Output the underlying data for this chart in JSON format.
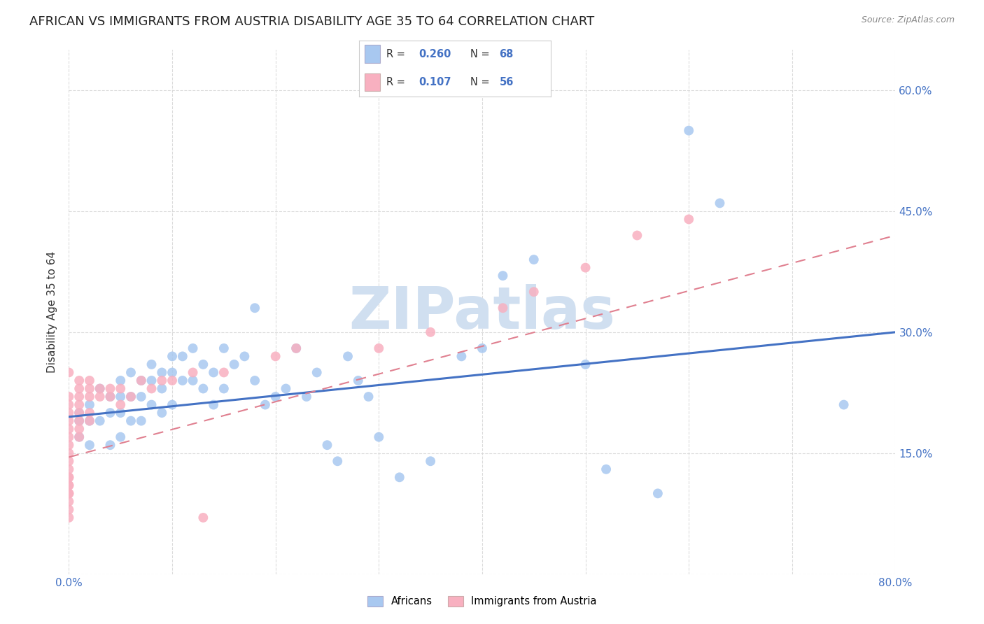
{
  "title": "AFRICAN VS IMMIGRANTS FROM AUSTRIA DISABILITY AGE 35 TO 64 CORRELATION CHART",
  "source": "Source: ZipAtlas.com",
  "ylabel_label": "Disability Age 35 to 64",
  "xlim": [
    0.0,
    0.8
  ],
  "ylim": [
    0.0,
    0.65
  ],
  "background_color": "#ffffff",
  "watermark": "ZIPatlas",
  "africans_color": "#a8c8f0",
  "austria_color": "#f8b0c0",
  "trendline_african_color": "#4472c4",
  "trendline_austria_color": "#e08090",
  "grid_color": "#d8d8d8",
  "title_fontsize": 13,
  "axis_label_fontsize": 11,
  "tick_fontsize": 11,
  "watermark_color": "#d0dff0",
  "watermark_fontsize": 60,
  "africans_x": [
    0.01,
    0.01,
    0.01,
    0.02,
    0.02,
    0.02,
    0.03,
    0.03,
    0.04,
    0.04,
    0.04,
    0.05,
    0.05,
    0.05,
    0.05,
    0.06,
    0.06,
    0.06,
    0.07,
    0.07,
    0.07,
    0.08,
    0.08,
    0.08,
    0.09,
    0.09,
    0.09,
    0.1,
    0.1,
    0.1,
    0.11,
    0.11,
    0.12,
    0.12,
    0.13,
    0.13,
    0.14,
    0.14,
    0.15,
    0.15,
    0.16,
    0.17,
    0.18,
    0.18,
    0.19,
    0.2,
    0.21,
    0.22,
    0.23,
    0.24,
    0.25,
    0.26,
    0.27,
    0.28,
    0.29,
    0.3,
    0.32,
    0.35,
    0.38,
    0.4,
    0.42,
    0.45,
    0.5,
    0.52,
    0.57,
    0.6,
    0.63,
    0.75
  ],
  "africans_y": [
    0.2,
    0.19,
    0.17,
    0.21,
    0.19,
    0.16,
    0.23,
    0.19,
    0.22,
    0.2,
    0.16,
    0.24,
    0.22,
    0.2,
    0.17,
    0.25,
    0.22,
    0.19,
    0.24,
    0.22,
    0.19,
    0.26,
    0.24,
    0.21,
    0.25,
    0.23,
    0.2,
    0.27,
    0.25,
    0.21,
    0.27,
    0.24,
    0.28,
    0.24,
    0.26,
    0.23,
    0.25,
    0.21,
    0.28,
    0.23,
    0.26,
    0.27,
    0.33,
    0.24,
    0.21,
    0.22,
    0.23,
    0.28,
    0.22,
    0.25,
    0.16,
    0.14,
    0.27,
    0.24,
    0.22,
    0.17,
    0.12,
    0.14,
    0.27,
    0.28,
    0.37,
    0.39,
    0.26,
    0.13,
    0.1,
    0.55,
    0.46,
    0.21
  ],
  "austria_x": [
    0.0,
    0.0,
    0.0,
    0.0,
    0.0,
    0.0,
    0.0,
    0.0,
    0.0,
    0.0,
    0.0,
    0.0,
    0.0,
    0.0,
    0.0,
    0.0,
    0.0,
    0.0,
    0.0,
    0.0,
    0.01,
    0.01,
    0.01,
    0.01,
    0.01,
    0.01,
    0.01,
    0.01,
    0.02,
    0.02,
    0.02,
    0.02,
    0.02,
    0.03,
    0.03,
    0.04,
    0.04,
    0.05,
    0.05,
    0.06,
    0.07,
    0.08,
    0.09,
    0.1,
    0.12,
    0.13,
    0.15,
    0.2,
    0.22,
    0.3,
    0.35,
    0.42,
    0.45,
    0.5,
    0.55,
    0.6
  ],
  "austria_y": [
    0.07,
    0.08,
    0.09,
    0.1,
    0.1,
    0.11,
    0.11,
    0.12,
    0.12,
    0.13,
    0.14,
    0.15,
    0.16,
    0.17,
    0.18,
    0.19,
    0.2,
    0.21,
    0.22,
    0.25,
    0.17,
    0.18,
    0.19,
    0.2,
    0.21,
    0.22,
    0.23,
    0.24,
    0.19,
    0.2,
    0.22,
    0.23,
    0.24,
    0.22,
    0.23,
    0.22,
    0.23,
    0.21,
    0.23,
    0.22,
    0.24,
    0.23,
    0.24,
    0.24,
    0.25,
    0.07,
    0.25,
    0.27,
    0.28,
    0.28,
    0.3,
    0.33,
    0.35,
    0.38,
    0.42,
    0.44
  ],
  "af_trend_x0": 0.0,
  "af_trend_y0": 0.195,
  "af_trend_x1": 0.8,
  "af_trend_y1": 0.3,
  "au_trend_x0": 0.0,
  "au_trend_y0": 0.145,
  "au_trend_x1": 0.8,
  "au_trend_y1": 0.42
}
